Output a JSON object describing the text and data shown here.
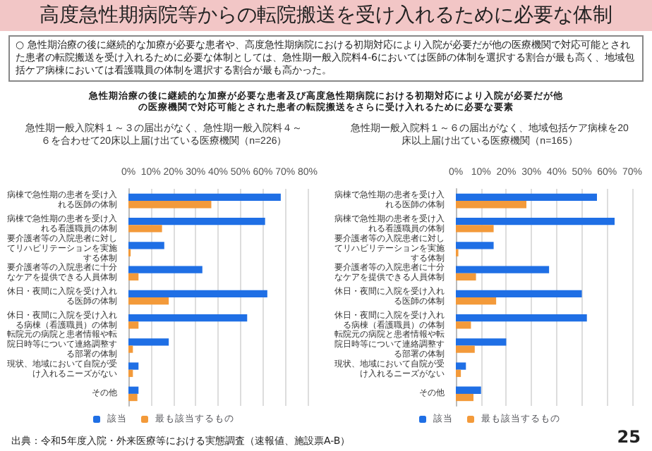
{
  "chart_data": [
    {
      "type": "bar",
      "orientation": "horizontal",
      "title": "急性期一般入院料１～３の届出がなく、急性期一般入院料４～６を合わせて20床以上届け出ている医療機関（n=226）",
      "annotations": [
        "高度急性期病院等からの転院搬送を受け入れるために必要な体制",
        "○ 急性期治療の後に継続的な加療が必要な患者や、高度急性期病院における初期対応により入院が必要だが他の医療機関で対応可能とされた患者の転院搬送を受け入れるために必要な体制としては、急性期一般入院料4-6においては医師の体制を選択する割合が最も高く、地域包括ケア病棟においては看護職員の体制を選択する割合が最も高かった。",
        "急性期治療の後に継続的な加療が必要な患者及び高度急性期病院における初期対応により入院が必要だが他の医療機関で対応可能とされた患者の転院搬送をさらに受け入れるために必要な要素",
        "出典：令和5年度入院・外来医療等における実態調査（速報値、施設票A-B）",
        "25"
      ],
      "categories": [
        "病棟で急性期の患者を受け入れる医師の体制",
        "病棟で急性期の患者を受け入れる看護職員の体制",
        "要介護者等の入院患者に対してリハビリテーションを実施する体制",
        "要介護者等の入院患者に十分なケアを提供できる人員体制",
        "休日・夜間に入院を受け入れる医師の体制",
        "休日・夜間に入院を受け入れる病棟（看護職員）の体制",
        "転院元の病院と患者情報や転院日時等について連絡調整する部署の体制",
        "現状、地域において自院が受け入れるニーズがない",
        "その他"
      ],
      "series": [
        {
          "name": "該当",
          "color": "#1f6fe5",
          "values": [
            68,
            61,
            16,
            33,
            62,
            53,
            18,
            4.5,
            4.5
          ]
        },
        {
          "name": "最も該当するもの",
          "color": "#f39a3a",
          "values": [
            37,
            15,
            1,
            4.5,
            18,
            4.5,
            2,
            2,
            4
          ]
        }
      ],
      "xlim": [
        0,
        80
      ],
      "xticks": [
        {
          "value": 0,
          "label": "0%"
        },
        {
          "value": 10,
          "label": "10%"
        },
        {
          "value": 20,
          "label": "20%"
        },
        {
          "value": 30,
          "label": "30%"
        },
        {
          "value": 40,
          "label": "40%"
        },
        {
          "value": 50,
          "label": "50%"
        },
        {
          "value": 60,
          "label": "60%"
        },
        {
          "value": 70,
          "label": "70%"
        },
        {
          "value": 80,
          "label": "80%"
        }
      ],
      "grid": "x",
      "legend": "bottom"
    },
    {
      "type": "bar",
      "orientation": "horizontal",
      "title": "急性期一般入院料１～６の届出がなく、地域包括ケア病棟を20床以上届け出ている医療機関（n=165）",
      "categories": [
        "病棟で急性期の患者を受け入れる医師の体制",
        "病棟で急性期の患者を受け入れる看護職員の体制",
        "要介護者等の入院患者に対してリハビリテーションを実施する体制",
        "要介護者等の入院患者に十分なケアを提供できる人員体制",
        "休日・夜間に入院を受け入れる医師の体制",
        "休日・夜間に入院を受け入れる病棟（看護職員）の体制",
        "転院元の病院と患者情報や転院日時等について連絡調整する部署の体制",
        "現状、地域において自院が受け入れるニーズがない",
        "その他"
      ],
      "series": [
        {
          "name": "該当",
          "color": "#1f6fe5",
          "values": [
            56,
            63,
            15,
            37,
            50,
            52,
            20,
            4,
            10
          ]
        },
        {
          "name": "最も該当するもの",
          "color": "#f39a3a",
          "values": [
            28,
            15,
            1,
            8,
            16,
            6,
            7.5,
            2,
            7
          ]
        }
      ],
      "xlim": [
        0,
        70
      ],
      "xticks": [
        {
          "value": 0,
          "label": "0%"
        },
        {
          "value": 10,
          "label": "10%"
        },
        {
          "value": 20,
          "label": "20%"
        },
        {
          "value": 30,
          "label": "30%"
        },
        {
          "value": 40,
          "label": "40%"
        },
        {
          "value": 50,
          "label": "50%"
        },
        {
          "value": 60,
          "label": "60%"
        },
        {
          "value": 70,
          "label": "70%"
        }
      ],
      "grid": "x",
      "legend": "bottom"
    }
  ]
}
